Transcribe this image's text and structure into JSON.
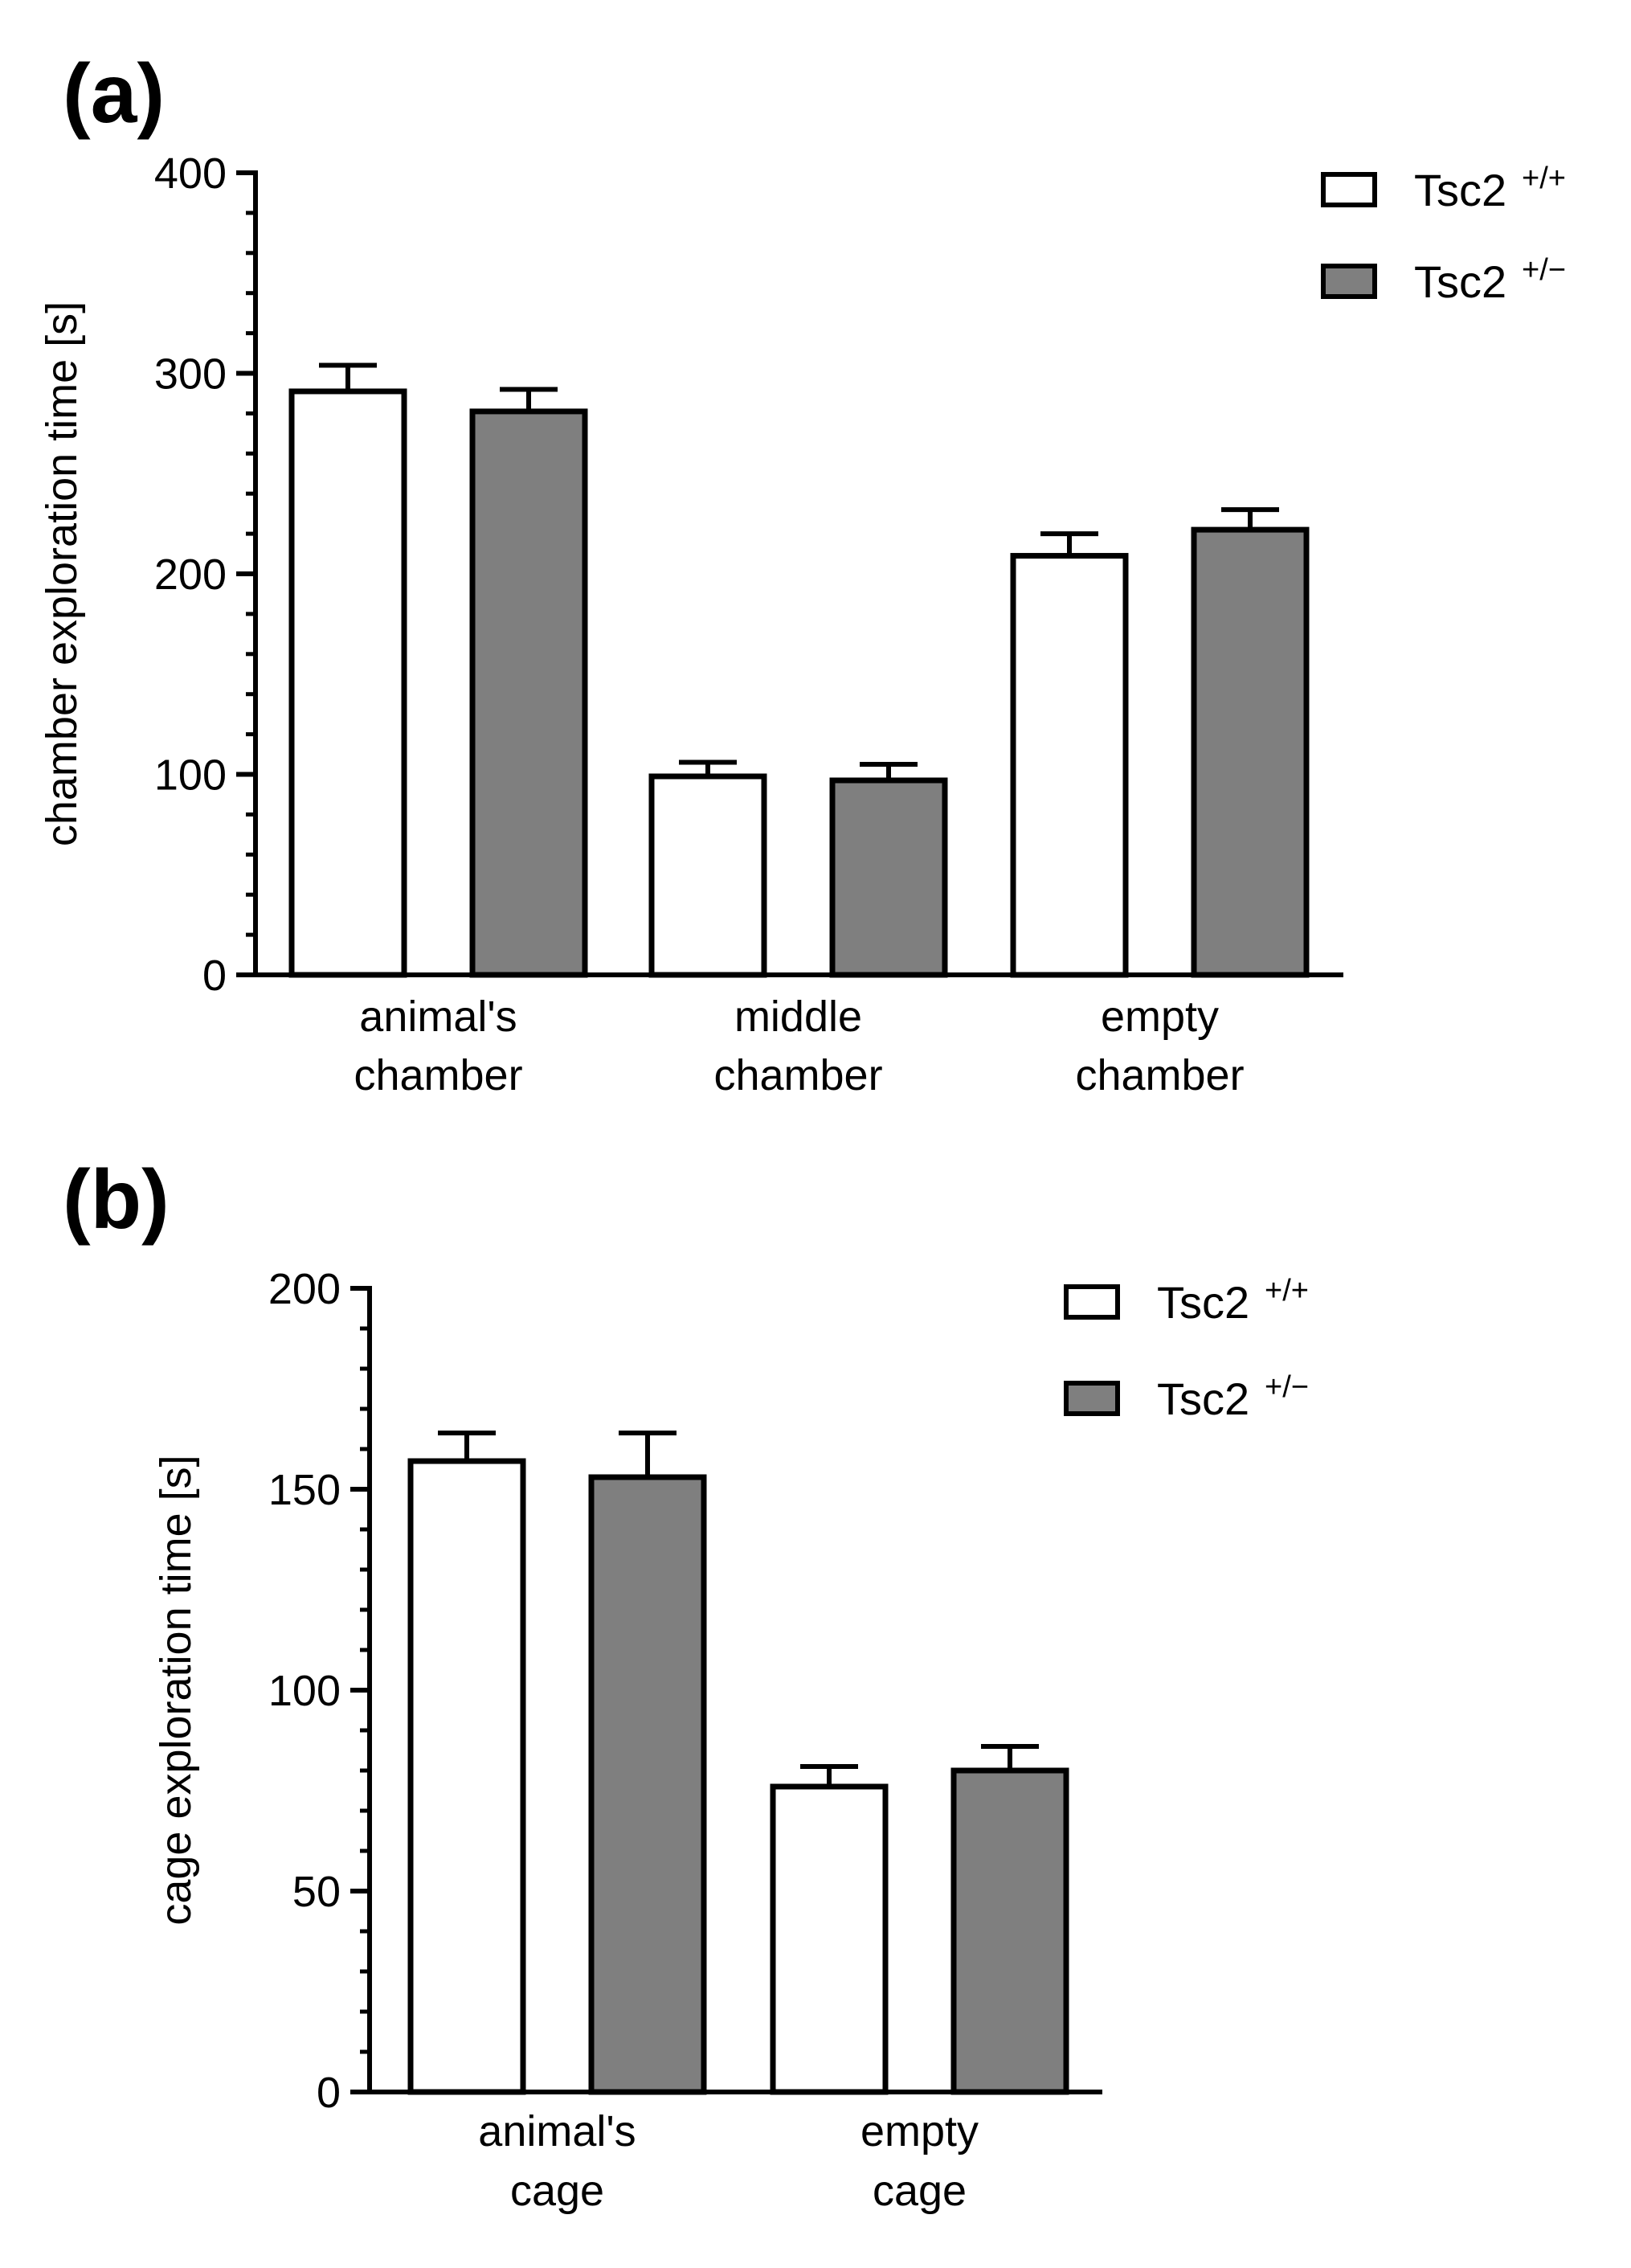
{
  "chart_data": [
    {
      "panel": "(a)",
      "type": "bar",
      "categories": [
        [
          "animal's",
          "chamber"
        ],
        [
          "middle",
          "chamber"
        ],
        [
          "empty",
          "chamber"
        ]
      ],
      "series": [
        {
          "name": "Tsc2",
          "sup": "+/+",
          "fill": "#ffffff",
          "values": [
            291,
            99,
            209
          ],
          "errors": [
            13,
            7,
            11
          ]
        },
        {
          "name": "Tsc2",
          "sup": "+/−",
          "fill": "#7f7f7f",
          "values": [
            281,
            97,
            222
          ],
          "errors": [
            11,
            8,
            10
          ]
        }
      ],
      "ylabel": "chamber exploration time [s]",
      "ylim": [
        0,
        400
      ],
      "yticks": [
        0,
        100,
        200,
        300,
        400
      ],
      "ytick_labels": [
        "0",
        "100",
        "200",
        "300",
        "400"
      ],
      "minor_tick_step": 20,
      "legend_position": "top-right",
      "grid": false
    },
    {
      "panel": "(b)",
      "type": "bar",
      "categories": [
        [
          "animal's",
          "cage"
        ],
        [
          "empty",
          "cage"
        ]
      ],
      "series": [
        {
          "name": "Tsc2",
          "sup": "+/+",
          "fill": "#ffffff",
          "values": [
            157,
            76
          ],
          "errors": [
            7,
            5
          ]
        },
        {
          "name": "Tsc2",
          "sup": "+/−",
          "fill": "#7f7f7f",
          "values": [
            153,
            80
          ],
          "errors": [
            11,
            6
          ]
        }
      ],
      "ylabel": "cage exploration time [s]",
      "ylim": [
        0,
        200
      ],
      "yticks": [
        0,
        50,
        100,
        150,
        200
      ],
      "ytick_labels": [
        "0",
        "50",
        "100",
        "150",
        "200"
      ],
      "minor_tick_step": 10,
      "legend_position": "top-right",
      "grid": false
    }
  ]
}
